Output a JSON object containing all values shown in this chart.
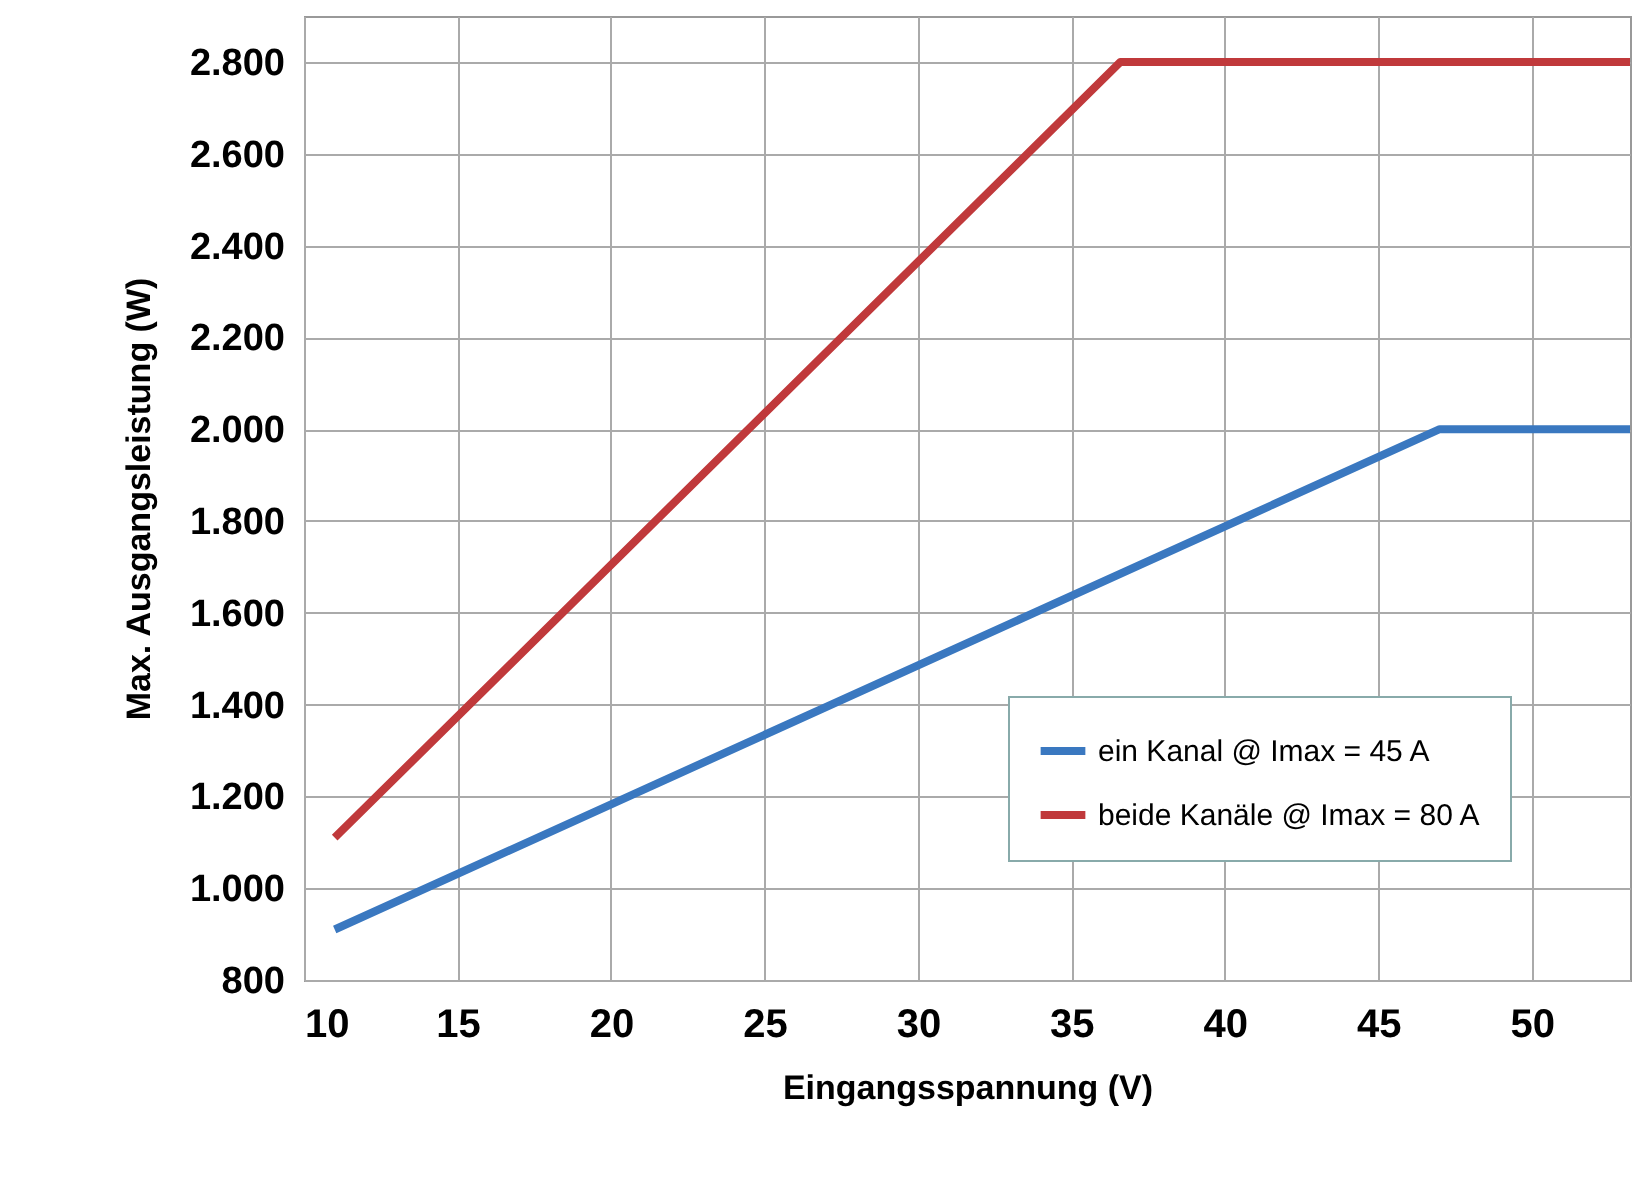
{
  "chart_data": {
    "type": "line",
    "xlabel": "Eingangsspannung (V)",
    "ylabel": "Max. Ausgangsleistung (W)",
    "xlim": [
      10,
      53.2
    ],
    "xticks": [
      10,
      15,
      20,
      25,
      30,
      35,
      40,
      45,
      50
    ],
    "ylim": [
      800,
      2900
    ],
    "yticks": [
      {
        "value": 800,
        "label": "800"
      },
      {
        "value": 1000,
        "label": "1.000"
      },
      {
        "value": 1200,
        "label": "1.200"
      },
      {
        "value": 1400,
        "label": "1.400"
      },
      {
        "value": 1600,
        "label": "1.600"
      },
      {
        "value": 1800,
        "label": "1.800"
      },
      {
        "value": 2000,
        "label": "2.000"
      },
      {
        "value": 2200,
        "label": "2.200"
      },
      {
        "value": 2400,
        "label": "2.400"
      },
      {
        "value": 2600,
        "label": "2.600"
      },
      {
        "value": 2800,
        "label": "2.800"
      }
    ],
    "grid": true,
    "legend": "bottom right",
    "line_style": "solid",
    "series": [
      {
        "name": "ein Kanal @ Imax = 45 A",
        "color": "#3a78c0",
        "x": [
          11,
          47,
          53.2
        ],
        "values": [
          910,
          2000,
          2000
        ]
      },
      {
        "name": "beide Kanäle @ Imax = 80 A",
        "color": "#c0393b",
        "x": [
          11,
          36.6,
          53.2
        ],
        "values": [
          1110,
          2800,
          2800
        ]
      }
    ]
  }
}
